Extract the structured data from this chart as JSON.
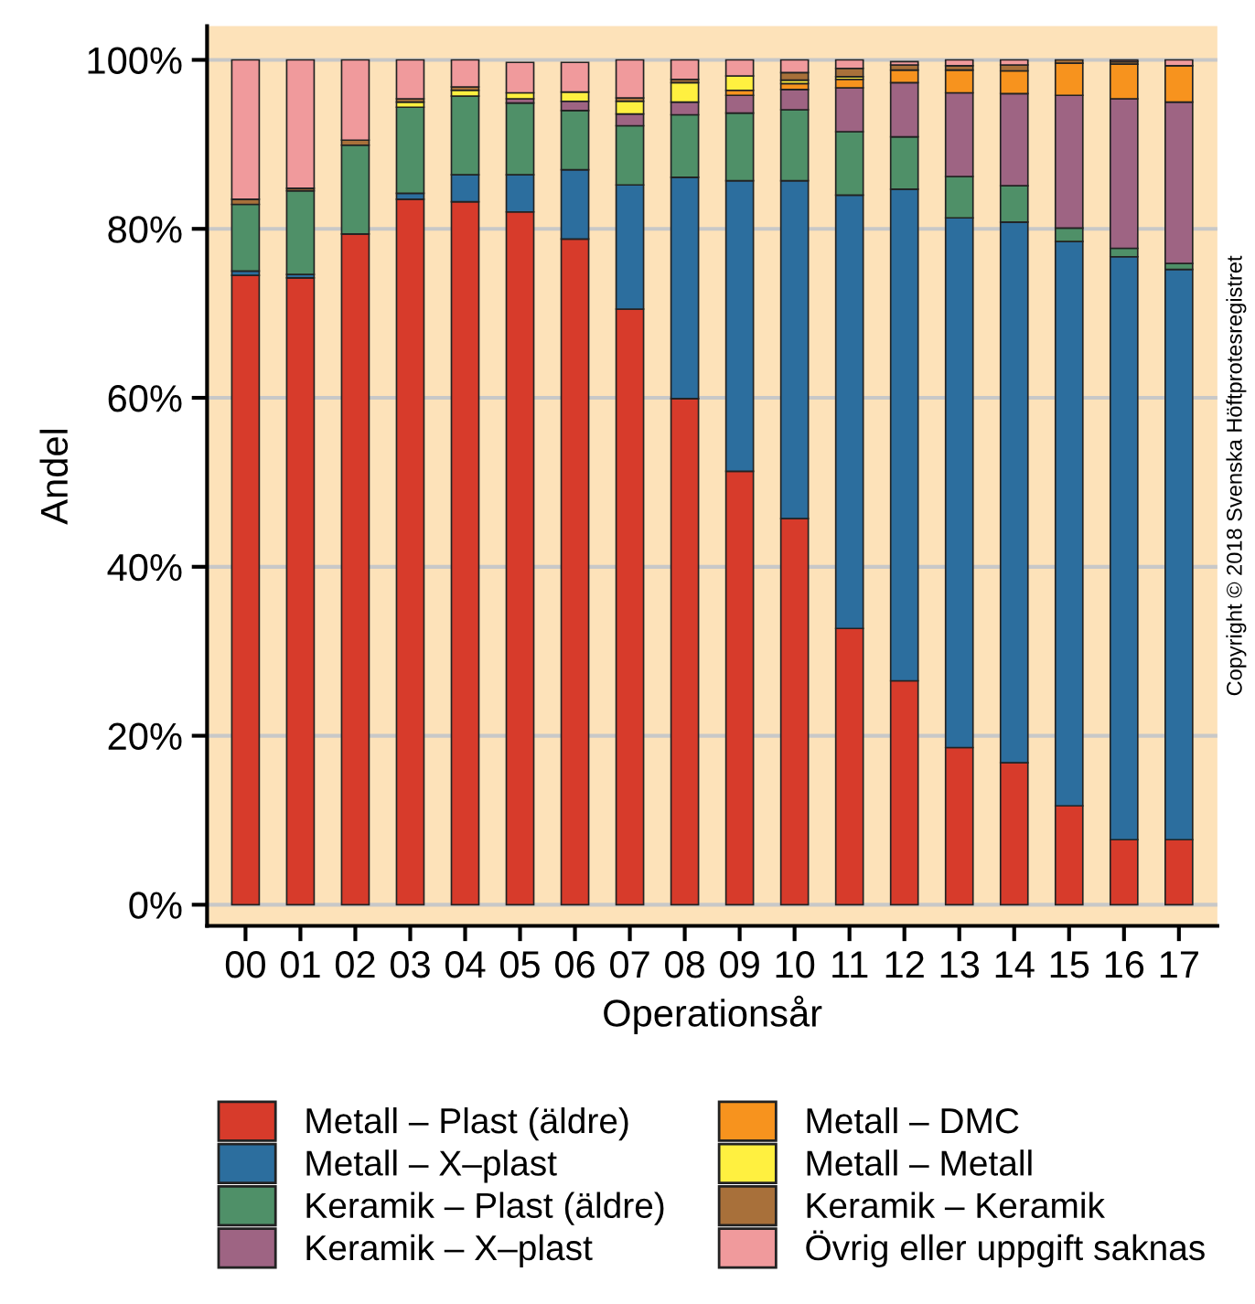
{
  "chart_data": {
    "type": "bar",
    "stacked": true,
    "xlabel": "Operationsår",
    "ylabel": "Andel",
    "categories": [
      "00",
      "01",
      "02",
      "03",
      "04",
      "05",
      "06",
      "07",
      "08",
      "09",
      "10",
      "11",
      "12",
      "13",
      "14",
      "15",
      "16",
      "17"
    ],
    "series": [
      {
        "name": "Metall – Plast (äldre)",
        "color": "#d73b2b",
        "values": [
          74.5,
          74.2,
          79.4,
          83.5,
          83.2,
          82.0,
          78.8,
          70.5,
          59.9,
          51.3,
          45.7,
          32.7,
          26.5,
          18.6,
          16.8,
          11.7,
          7.7,
          7.7
        ]
      },
      {
        "name": "Metall – X–plast",
        "color": "#2c6e9e",
        "values": [
          0.5,
          0.4,
          0,
          0.7,
          3.2,
          4.4,
          8.2,
          14.7,
          26.2,
          34.4,
          40.0,
          51.3,
          58.2,
          62.7,
          64.0,
          66.8,
          69.0,
          67.5
        ]
      },
      {
        "name": "Keramik – Plast (äldre)",
        "color": "#4f9068",
        "values": [
          7.9,
          9.9,
          10.5,
          10.2,
          9.3,
          8.5,
          7.0,
          7.0,
          7.4,
          8.0,
          8.4,
          7.5,
          6.2,
          4.9,
          4.3,
          1.6,
          1.0,
          0.7
        ]
      },
      {
        "name": "Keramik – X–plast",
        "color": "#9e6483",
        "values": [
          0,
          0,
          0,
          0,
          0,
          0.5,
          1.1,
          1.4,
          1.5,
          2.1,
          2.4,
          5.2,
          6.4,
          9.9,
          10.9,
          15.7,
          17.7,
          19.1
        ]
      },
      {
        "name": "Metall – DMC",
        "color": "#f7931e",
        "values": [
          0,
          0,
          0,
          0,
          0,
          0,
          0,
          0,
          0,
          0.6,
          0.7,
          1.0,
          1.5,
          2.7,
          2.7,
          3.8,
          4.1,
          4.3
        ]
      },
      {
        "name": "Metall – Metall",
        "color": "#fff040",
        "values": [
          0,
          0,
          0,
          0.6,
          0.7,
          0.7,
          1.1,
          1.5,
          2.3,
          1.7,
          0.4,
          0.3,
          null,
          0,
          0,
          0,
          0,
          0
        ]
      },
      {
        "name": "Keramik – Keramik",
        "color": "#a8703a",
        "values": [
          0.6,
          0.3,
          0.6,
          0.4,
          0.4,
          null,
          null,
          0.4,
          0.4,
          0,
          0.9,
          1.0,
          0.6,
          0.5,
          0.7,
          0.4,
          0.3,
          0
        ]
      },
      {
        "name": "Övrig eller uppgift saknas",
        "color": "#f09a9c",
        "values": [
          16.5,
          15.2,
          9.5,
          4.6,
          3.2,
          3.6,
          3.5,
          4.5,
          2.3,
          1.9,
          1.5,
          1.0,
          0.4,
          0.7,
          0.6,
          0,
          0.2,
          0.7
        ]
      }
    ],
    "ylim": [
      -2.5,
      104
    ],
    "yticks": [
      {
        "value": 0,
        "label": "0%"
      },
      {
        "value": 20,
        "label": "20%"
      },
      {
        "value": 40,
        "label": "40%"
      },
      {
        "value": 60,
        "label": "60%"
      },
      {
        "value": 80,
        "label": "80%"
      },
      {
        "value": 100,
        "label": "100%"
      }
    ],
    "grid": "y",
    "legend": "bottom",
    "annotations": [
      "Copyright © 2018 Svenska Höftprotesregistret"
    ]
  }
}
